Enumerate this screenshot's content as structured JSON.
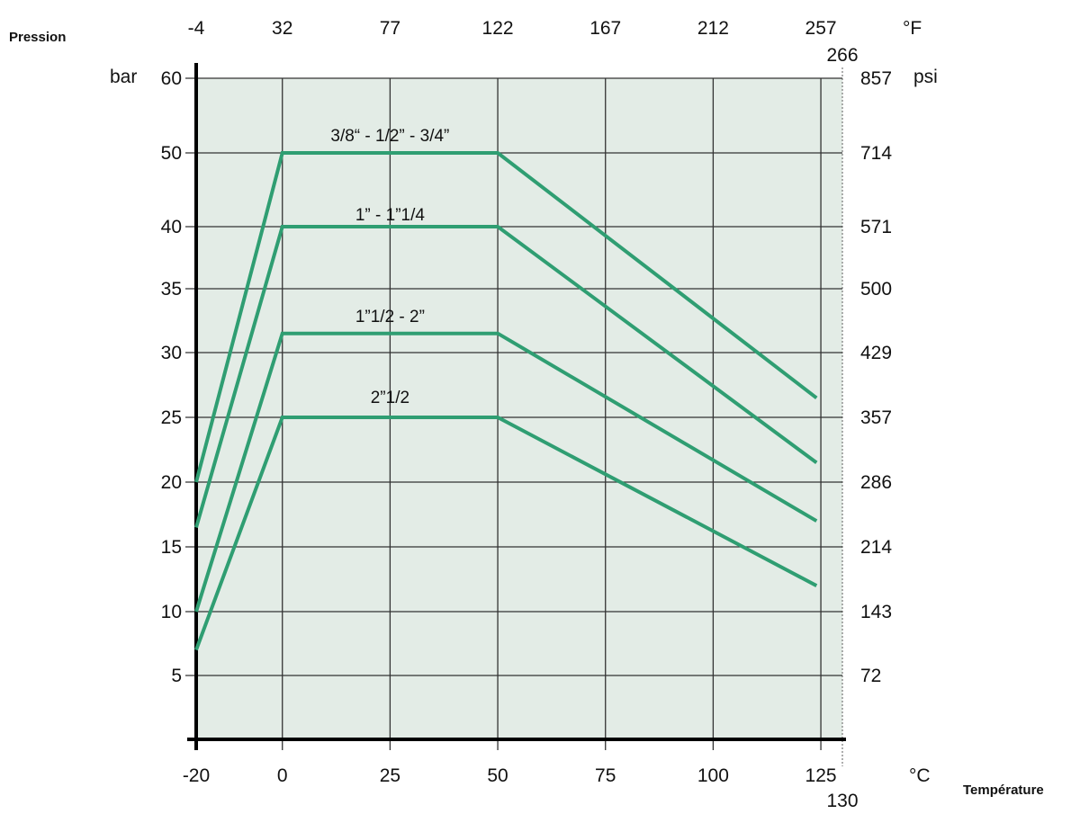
{
  "chart_data": {
    "type": "line",
    "pressure_label": "Pression",
    "temperature_label": "Température",
    "y_unit_left": "bar",
    "y_unit_right": "psi",
    "x_unit_bottom": "°C",
    "x_unit_top": "°F",
    "x_ticks_c": [
      "-20",
      "0",
      "25",
      "50",
      "75",
      "100",
      "125"
    ],
    "x_end_c": "130",
    "x_ticks_f": [
      "-4",
      "32",
      "77",
      "122",
      "167",
      "212",
      "257"
    ],
    "x_end_f": "266",
    "y_ticks_bar": [
      "60",
      "50",
      "40",
      "35",
      "30",
      "25",
      "20",
      "15",
      "10",
      "5"
    ],
    "y_ticks_psi": [
      "857",
      "714",
      "571",
      "500",
      "429",
      "357",
      "286",
      "214",
      "143",
      "72"
    ],
    "xlim": [
      -20,
      130
    ],
    "grid": true,
    "colors": {
      "plot_bg": "#e3ece6",
      "series": "#2f9e72",
      "grid": "#333333"
    },
    "series": [
      {
        "name": "3/8“ - 1/2” - 3/4”",
        "points": [
          [
            -20,
            20
          ],
          [
            0,
            50
          ],
          [
            50,
            50
          ],
          [
            124,
            26.5
          ]
        ]
      },
      {
        "name": "1” - 1”1/4",
        "points": [
          [
            -20,
            16.5
          ],
          [
            0,
            40
          ],
          [
            50,
            40
          ],
          [
            124,
            21.5
          ]
        ]
      },
      {
        "name": "1”1/2 - 2”",
        "points": [
          [
            -20,
            10
          ],
          [
            0,
            31.5
          ],
          [
            50,
            31.5
          ],
          [
            124,
            17
          ]
        ]
      },
      {
        "name": "2”1/2",
        "points": [
          [
            -20,
            7
          ],
          [
            0,
            25
          ],
          [
            50,
            25
          ],
          [
            124,
            12
          ]
        ]
      }
    ]
  }
}
